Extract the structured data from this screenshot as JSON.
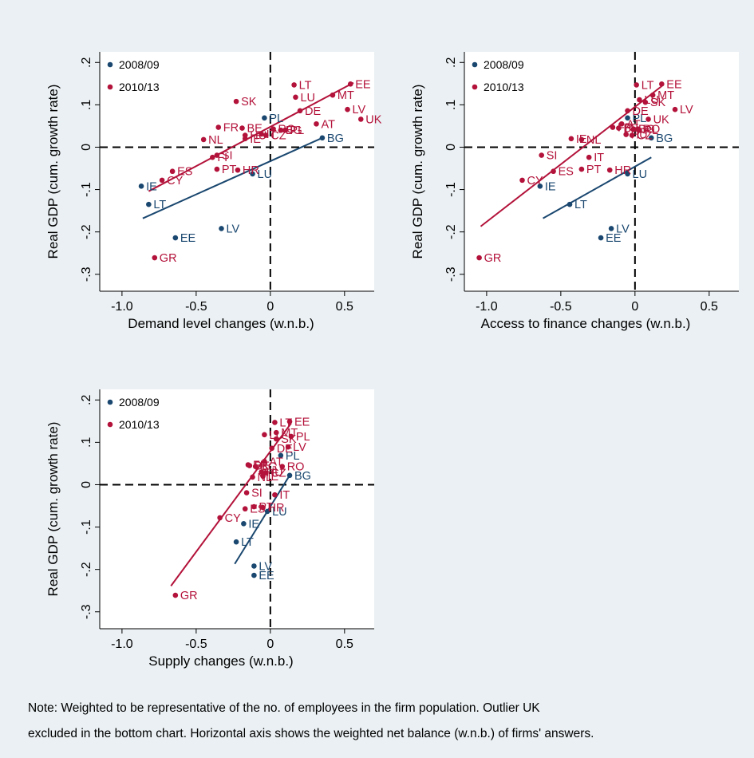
{
  "colors": {
    "series_2008": "#1a476f",
    "series_2010": "#b3123a",
    "plot_bg": "#ffffff",
    "figure_bg": "#eaf0f3"
  },
  "note": {
    "line1": "Note: Weighted to be representative of the no. of employees in the firm population. Outlier UK",
    "line2": "excluded in the bottom chart. Horizontal axis shows the weighted net balance (w.n.b.) of firms' answers."
  },
  "chart_data": [
    {
      "type": "scatter",
      "xlabel": "Demand level changes (w.n.b.)",
      "ylabel": "Real GDP (cum. growth rate)",
      "xlim": [
        -1.15,
        0.7
      ],
      "ylim": [
        -0.34,
        0.225
      ],
      "xticks": [
        -1.0,
        -0.5,
        0,
        0.5
      ],
      "xtick_labels": [
        "-1.0",
        "-0.5",
        "0",
        "0.5"
      ],
      "yticks": [
        -0.3,
        -0.2,
        -0.1,
        0,
        0.1,
        0.2
      ],
      "ytick_labels": [
        "-.3",
        "-.2",
        "-.1",
        "0",
        ".1",
        ".2"
      ],
      "legend": "top-left",
      "series": [
        {
          "name": "2008/09",
          "points": [
            {
              "label": "PL",
              "x": -0.04,
              "y": 0.069
            },
            {
              "label": "BG",
              "x": 0.35,
              "y": 0.022
            },
            {
              "label": "LU",
              "x": -0.12,
              "y": -0.063
            },
            {
              "label": "IE",
              "x": -0.87,
              "y": -0.092
            },
            {
              "label": "LT",
              "x": -0.82,
              "y": -0.135
            },
            {
              "label": "LV",
              "x": -0.33,
              "y": -0.192
            },
            {
              "label": "EE",
              "x": -0.64,
              "y": -0.214
            }
          ],
          "fit": {
            "x": [
              -0.86,
              0.35
            ],
            "y": [
              -0.168,
              0.022
            ]
          }
        },
        {
          "name": "2010/13",
          "points": [
            {
              "label": "EE",
              "x": 0.54,
              "y": 0.149
            },
            {
              "label": "LT",
              "x": 0.16,
              "y": 0.147
            },
            {
              "label": "MT",
              "x": 0.42,
              "y": 0.123
            },
            {
              "label": "LU",
              "x": 0.17,
              "y": 0.118
            },
            {
              "label": "SK",
              "x": -0.23,
              "y": 0.108
            },
            {
              "label": "LV",
              "x": 0.52,
              "y": 0.089
            },
            {
              "label": "DE",
              "x": 0.2,
              "y": 0.086
            },
            {
              "label": "UK",
              "x": 0.61,
              "y": 0.066
            },
            {
              "label": "AT",
              "x": 0.31,
              "y": 0.055
            },
            {
              "label": "FR",
              "x": -0.35,
              "y": 0.047
            },
            {
              "label": "BE",
              "x": -0.19,
              "y": 0.045
            },
            {
              "label": "PL",
              "x": 0.1,
              "y": 0.04
            },
            {
              "label": "BG",
              "x": 0.07,
              "y": 0.04
            },
            {
              "label": "RO",
              "x": 0.02,
              "y": 0.043
            },
            {
              "label": "IT",
              "x": -0.06,
              "y": 0.031
            },
            {
              "label": "CZ",
              "x": -0.03,
              "y": 0.028
            },
            {
              "label": "HU",
              "x": -0.17,
              "y": 0.028
            },
            {
              "label": "IE",
              "x": -0.17,
              "y": 0.02
            },
            {
              "label": "NL",
              "x": -0.45,
              "y": 0.018
            },
            {
              "label": "FI",
              "x": -0.39,
              "y": -0.024
            },
            {
              "label": "SI",
              "x": -0.36,
              "y": -0.019
            },
            {
              "label": "ES",
              "x": -0.66,
              "y": -0.057
            },
            {
              "label": "PT",
              "x": -0.36,
              "y": -0.052
            },
            {
              "label": "HR",
              "x": -0.22,
              "y": -0.054
            },
            {
              "label": "CY",
              "x": -0.73,
              "y": -0.078
            },
            {
              "label": "GR",
              "x": -0.78,
              "y": -0.261
            }
          ],
          "fit": {
            "x": [
              -0.82,
              0.56
            ],
            "y": [
              -0.104,
              0.152
            ]
          }
        }
      ]
    },
    {
      "type": "scatter",
      "xlabel": "Access to finance changes (w.n.b.)",
      "ylabel": "Real GDP (cum. growth rate)",
      "xlim": [
        -1.15,
        0.7
      ],
      "ylim": [
        -0.34,
        0.225
      ],
      "xticks": [
        -1.0,
        -0.5,
        0,
        0.5
      ],
      "xtick_labels": [
        "-1.0",
        "-0.5",
        "0",
        "0.5"
      ],
      "yticks": [
        -0.3,
        -0.2,
        -0.1,
        0,
        0.1,
        0.2
      ],
      "ytick_labels": [
        "-.3",
        "-.2",
        "-.1",
        "0",
        ".1",
        ".2"
      ],
      "legend": "top-left",
      "series": [
        {
          "name": "2008/09",
          "points": [
            {
              "label": "PL",
              "x": -0.05,
              "y": 0.069
            },
            {
              "label": "BG",
              "x": 0.11,
              "y": 0.022
            },
            {
              "label": "LU",
              "x": -0.05,
              "y": -0.063
            },
            {
              "label": "IE",
              "x": -0.64,
              "y": -0.092
            },
            {
              "label": "LT",
              "x": -0.44,
              "y": -0.135
            },
            {
              "label": "LV",
              "x": -0.16,
              "y": -0.192
            },
            {
              "label": "EE",
              "x": -0.23,
              "y": -0.214
            }
          ],
          "fit": {
            "x": [
              -0.62,
              0.11
            ],
            "y": [
              -0.168,
              -0.024
            ]
          }
        },
        {
          "name": "2010/13",
          "points": [
            {
              "label": "EE",
              "x": 0.18,
              "y": 0.149
            },
            {
              "label": "LT",
              "x": 0.01,
              "y": 0.147
            },
            {
              "label": "MT",
              "x": 0.12,
              "y": 0.123
            },
            {
              "label": "LU",
              "x": 0.03,
              "y": 0.112
            },
            {
              "label": "SK",
              "x": 0.07,
              "y": 0.106
            },
            {
              "label": "LV",
              "x": 0.27,
              "y": 0.089
            },
            {
              "label": "DE",
              "x": -0.05,
              "y": 0.086
            },
            {
              "label": "UK",
              "x": 0.09,
              "y": 0.066
            },
            {
              "label": "AT",
              "x": -0.09,
              "y": 0.055
            },
            {
              "label": "FR",
              "x": -0.15,
              "y": 0.047
            },
            {
              "label": "BE",
              "x": -0.11,
              "y": 0.045
            },
            {
              "label": "PL",
              "x": 0.03,
              "y": 0.04
            },
            {
              "label": "RO",
              "x": 0.02,
              "y": 0.043
            },
            {
              "label": "BG",
              "x": -0.01,
              "y": 0.043
            },
            {
              "label": "HU",
              "x": -0.06,
              "y": 0.03
            },
            {
              "label": "CZ",
              "x": -0.02,
              "y": 0.028
            },
            {
              "label": "IE",
              "x": -0.43,
              "y": 0.02
            },
            {
              "label": "NL",
              "x": -0.36,
              "y": 0.018
            },
            {
              "label": "IT",
              "x": -0.31,
              "y": -0.024
            },
            {
              "label": "SI",
              "x": -0.63,
              "y": -0.019
            },
            {
              "label": "ES",
              "x": -0.55,
              "y": -0.057
            },
            {
              "label": "PT",
              "x": -0.36,
              "y": -0.052
            },
            {
              "label": "HR",
              "x": -0.17,
              "y": -0.054
            },
            {
              "label": "CY",
              "x": -0.76,
              "y": -0.078
            },
            {
              "label": "GR",
              "x": -1.05,
              "y": -0.261
            }
          ],
          "fit": {
            "x": [
              -1.04,
              0.18
            ],
            "y": [
              -0.187,
              0.144
            ]
          }
        }
      ]
    },
    {
      "type": "scatter",
      "xlabel": "Supply changes (w.n.b.)",
      "ylabel": "Real GDP (cum. growth rate)",
      "xlim": [
        -1.15,
        0.7
      ],
      "ylim": [
        -0.34,
        0.225
      ],
      "xticks": [
        -1.0,
        -0.5,
        0,
        0.5
      ],
      "xtick_labels": [
        "-1.0",
        "-0.5",
        "0",
        "0.5"
      ],
      "yticks": [
        -0.3,
        -0.2,
        -0.1,
        0,
        0.1,
        0.2
      ],
      "ytick_labels": [
        "-.3",
        "-.2",
        "-.1",
        "0",
        ".1",
        ".2"
      ],
      "legend": "top-left",
      "series": [
        {
          "name": "2008/09",
          "points": [
            {
              "label": "PL",
              "x": 0.07,
              "y": 0.069
            },
            {
              "label": "BG",
              "x": 0.13,
              "y": 0.022
            },
            {
              "label": "LU",
              "x": -0.02,
              "y": -0.063
            },
            {
              "label": "IE",
              "x": -0.18,
              "y": -0.092
            },
            {
              "label": "LT",
              "x": -0.23,
              "y": -0.135
            },
            {
              "label": "LV",
              "x": -0.11,
              "y": -0.192
            },
            {
              "label": "EE",
              "x": -0.11,
              "y": -0.214
            }
          ],
          "fit": {
            "x": [
              -0.24,
              0.13
            ],
            "y": [
              -0.187,
              0.022
            ]
          }
        },
        {
          "name": "2010/13",
          "points": [
            {
              "label": "EE",
              "x": 0.13,
              "y": 0.149
            },
            {
              "label": "LT",
              "x": 0.03,
              "y": 0.147
            },
            {
              "label": "MT",
              "x": 0.04,
              "y": 0.123
            },
            {
              "label": "LU",
              "x": -0.04,
              "y": 0.118
            },
            {
              "label": "PL",
              "x": 0.14,
              "y": 0.114
            },
            {
              "label": "SK",
              "x": 0.04,
              "y": 0.108
            },
            {
              "label": "LV",
              "x": 0.12,
              "y": 0.089
            },
            {
              "label": "DE",
              "x": 0.01,
              "y": 0.086
            },
            {
              "label": "AT",
              "x": -0.04,
              "y": 0.055
            },
            {
              "label": "FR",
              "x": -0.15,
              "y": 0.047
            },
            {
              "label": "BE",
              "x": -0.14,
              "y": 0.045
            },
            {
              "label": "RO",
              "x": 0.08,
              "y": 0.043
            },
            {
              "label": "BG",
              "x": -0.1,
              "y": 0.043
            },
            {
              "label": "HU",
              "x": -0.06,
              "y": 0.03
            },
            {
              "label": "CZ",
              "x": -0.03,
              "y": 0.028
            },
            {
              "label": "IT",
              "x": 0.03,
              "y": -0.024
            },
            {
              "label": "NL",
              "x": -0.12,
              "y": 0.018
            },
            {
              "label": "IE",
              "x": -0.05,
              "y": 0.02
            },
            {
              "label": "SI",
              "x": -0.16,
              "y": -0.019
            },
            {
              "label": "ES",
              "x": -0.17,
              "y": -0.057
            },
            {
              "label": "PT",
              "x": -0.11,
              "y": -0.052
            },
            {
              "label": "HR",
              "x": -0.05,
              "y": -0.054
            },
            {
              "label": "CY",
              "x": -0.34,
              "y": -0.078
            },
            {
              "label": "GR",
              "x": -0.64,
              "y": -0.261
            }
          ],
          "fit": {
            "x": [
              -0.67,
              0.14
            ],
            "y": [
              -0.239,
              0.145
            ]
          }
        }
      ]
    }
  ]
}
